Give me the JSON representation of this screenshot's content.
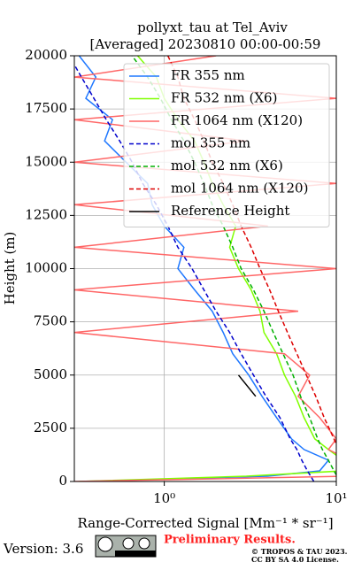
{
  "chart_data": {
    "type": "line",
    "title": "pollyxt_tau at Tel_Aviv",
    "subtitle": "[Averaged] 20230810 00:00-00:59",
    "x_label": "Range-Corrected Signal [Mm⁻¹ * sr⁻¹]",
    "y_label": "Height (m)",
    "x_log": true,
    "grid": true,
    "legend_position": "upper right",
    "xlim": [
      0.3,
      10
    ],
    "xticks": [
      {
        "value": 1,
        "label": "10⁰"
      },
      {
        "value": 10,
        "label": "10¹"
      }
    ],
    "ylim": [
      0,
      20000
    ],
    "yticks": [
      0,
      2500,
      5000,
      7500,
      10000,
      12500,
      15000,
      17500,
      20000
    ],
    "y": [
      0,
      250,
      500,
      1000,
      1500,
      2000,
      3000,
      4000,
      5000,
      6000,
      7000,
      8000,
      9000,
      10000,
      11000,
      12000,
      13000,
      14000,
      15000,
      16000,
      17000,
      18000,
      19000,
      20000
    ],
    "series": [
      {
        "name": "FR 355 nm",
        "color": "#1f78ff",
        "linestyle": "solid",
        "values": [
          0.35,
          4,
          8,
          9,
          6.5,
          5.5,
          4.5,
          3.7,
          3.1,
          2.5,
          2.2,
          1.9,
          1.5,
          1.2,
          1.3,
          1.0,
          0.85,
          0.8,
          0.6,
          0.45,
          0.5,
          0.35,
          0.4,
          0.32
        ]
      },
      {
        "name": "FR 532 nm (X6)",
        "color": "#80ff00",
        "linestyle": "solid",
        "values": [
          0.32,
          3,
          11,
          11,
          9,
          7.5,
          6.5,
          5.8,
          5.0,
          4.5,
          3.8,
          3.6,
          3.2,
          2.7,
          2.4,
          2.6,
          2.2,
          1.9,
          1.7,
          1.5,
          1.2,
          1.0,
          0.9,
          0.7
        ]
      },
      {
        "name": "FR 1064 nm (X120)",
        "color": "#ff6666",
        "linestyle": "solid",
        "values": [
          0.3,
          12,
          12,
          12,
          9,
          10,
          8,
          6,
          7,
          5,
          0.3,
          6,
          0.3,
          10,
          0.3,
          4,
          0.3,
          10,
          0.3,
          3,
          0.3,
          10,
          0.3,
          2
        ]
      },
      {
        "name": "mol 355 nm",
        "color": "#0000cc",
        "linestyle": "dashed",
        "values": [
          7.4,
          7.1,
          6.8,
          6.3,
          5.9,
          5.4,
          4.7,
          3.9,
          3.3,
          2.8,
          2.4,
          2.0,
          1.7,
          1.45,
          1.2,
          1.05,
          0.9,
          0.75,
          0.65,
          0.55,
          0.46,
          0.39,
          0.33,
          0.28
        ]
      },
      {
        "name": "mol 532 nm (X6)",
        "color": "#00b000",
        "linestyle": "dashed",
        "values": [
          10.5,
          10.1,
          9.7,
          9.0,
          8.3,
          7.8,
          7.0,
          6.2,
          5.6,
          4.9,
          4.3,
          3.8,
          3.3,
          2.8,
          2.5,
          2.2,
          1.9,
          1.7,
          1.5,
          1.3,
          1.1,
          0.95,
          0.8,
          0.65
        ]
      },
      {
        "name": "mol 1064 nm (X120)",
        "color": "#dd0000",
        "linestyle": "dashed",
        "values": [
          12.5,
          12.1,
          11.7,
          11.0,
          10.3,
          9.7,
          8.5,
          7.6,
          6.7,
          5.9,
          5.2,
          4.6,
          4.1,
          3.6,
          3.2,
          2.8,
          2.5,
          2.2,
          1.9,
          1.7,
          1.5,
          1.3,
          1.2,
          1.05
        ]
      },
      {
        "name": "Reference Height",
        "color": "#000000",
        "linestyle": "solid",
        "values": [
          null,
          null,
          null,
          null,
          null,
          null,
          null,
          3.4,
          2.7,
          null,
          null,
          null,
          null,
          null,
          null,
          null,
          null,
          null,
          null,
          null,
          null,
          null,
          null,
          null
        ]
      }
    ]
  },
  "footer": {
    "version": "Version: 3.6",
    "preliminary": "Preliminary Results.",
    "copyright": "© TROPOS & TAU 2023.",
    "license": "CC BY SA 4.0 License."
  }
}
